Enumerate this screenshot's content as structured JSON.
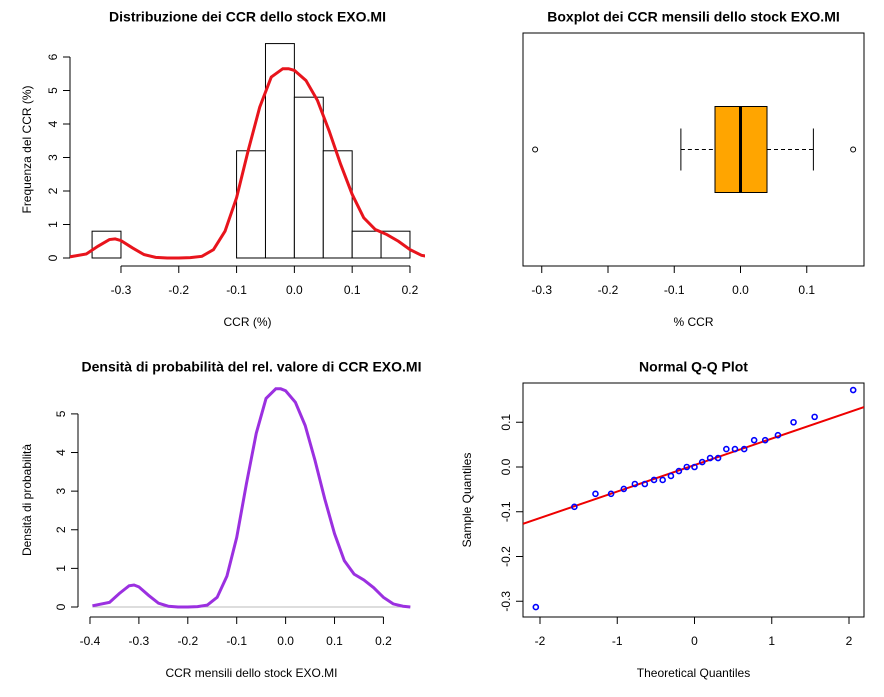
{
  "chart_data": [
    {
      "type": "histogram",
      "title": "Distribuzione dei CCR dello stock EXO.MI",
      "x_label": "CCR (%)",
      "y_label": "Frequenza del CCR (%)",
      "bins": [
        -0.35,
        -0.3,
        -0.25,
        -0.2,
        -0.15,
        -0.1,
        -0.05,
        0,
        0.05,
        0.1,
        0.15,
        0.2
      ],
      "values": [
        0.8,
        0,
        0,
        0,
        0,
        3.2,
        6.4,
        4.8,
        3.2,
        0.8,
        0.8
      ],
      "bar_color": "#ffffff",
      "edge_color": "#000000",
      "density": {
        "color": "#e8141c",
        "x": [
          -0.39,
          -0.36,
          -0.34,
          -0.32,
          -0.31,
          -0.3,
          -0.28,
          -0.26,
          -0.24,
          -0.22,
          -0.2,
          -0.18,
          -0.16,
          -0.14,
          -0.12,
          -0.1,
          -0.08,
          -0.06,
          -0.04,
          -0.02,
          -0.01,
          0,
          0.02,
          0.04,
          0.06,
          0.08,
          0.1,
          0.12,
          0.14,
          0.16,
          0.18,
          0.2,
          0.22,
          0.24,
          0.25
        ],
        "y": [
          0.03,
          0.12,
          0.35,
          0.55,
          0.57,
          0.52,
          0.3,
          0.1,
          0.02,
          0,
          0,
          0.01,
          0.05,
          0.25,
          0.8,
          1.8,
          3.2,
          4.5,
          5.4,
          5.65,
          5.65,
          5.6,
          5.3,
          4.7,
          3.8,
          2.8,
          1.9,
          1.2,
          0.85,
          0.7,
          0.5,
          0.25,
          0.08,
          0.02,
          0
        ]
      },
      "xlim": [
        -0.3882,
        0.226
      ],
      "ylim": [
        -0.239,
        6.716
      ],
      "xticks": [
        -0.3,
        -0.2,
        -0.1,
        {
          "value": 0,
          "label": "0.0"
        },
        0.1,
        0.2
      ],
      "yticks": [
        0,
        1,
        2,
        3,
        4,
        5,
        6
      ]
    },
    {
      "type": "boxplot",
      "title": "Boxplot dei CCR mensili dello stock EXO.MI",
      "x_label": "% CCR",
      "whisker_low": -0.09,
      "q1": -0.0385,
      "median": 0,
      "q3": 0.04,
      "whisker_high": 0.11,
      "outliers": [
        -0.31,
        0.17
      ],
      "color": "#ffa500",
      "xlim": [
        -0.3283,
        0.1864
      ],
      "xticks": [
        -0.3,
        -0.2,
        -0.1,
        {
          "value": 0,
          "label": "0.0"
        },
        0.1
      ]
    },
    {
      "type": "density",
      "title": "Densità di probabilità del rel. valore di CCR EXO.MI",
      "x_label": "CCR mensili dello stock EXO.MI",
      "y_label": "Densità di probabilità",
      "color": "#9b30e0",
      "x": [
        -0.395,
        -0.36,
        -0.34,
        -0.32,
        -0.31,
        -0.3,
        -0.28,
        -0.26,
        -0.24,
        -0.22,
        -0.2,
        -0.18,
        -0.16,
        -0.14,
        -0.12,
        -0.1,
        -0.08,
        -0.06,
        -0.04,
        -0.02,
        -0.01,
        0,
        0.02,
        0.04,
        0.06,
        0.08,
        0.1,
        0.12,
        0.14,
        0.16,
        0.18,
        0.2,
        0.22,
        0.24,
        0.255
      ],
      "y": [
        0.03,
        0.12,
        0.35,
        0.55,
        0.57,
        0.52,
        0.3,
        0.1,
        0.02,
        0,
        0,
        0.01,
        0.05,
        0.25,
        0.8,
        1.8,
        3.2,
        4.5,
        5.4,
        5.65,
        5.65,
        5.6,
        5.3,
        4.7,
        3.8,
        2.8,
        1.9,
        1.2,
        0.85,
        0.7,
        0.5,
        0.25,
        0.08,
        0.02,
        0
      ],
      "xlim": [
        -0.4245,
        0.285
      ],
      "ylim": [
        -0.259,
        5.8
      ],
      "xticks": [
        -0.4,
        -0.3,
        -0.2,
        -0.1,
        {
          "value": 0,
          "label": "0.0"
        },
        0.1,
        0.2
      ],
      "yticks": [
        0,
        1,
        2,
        3,
        4,
        5
      ]
    },
    {
      "type": "qq",
      "title": "Normal Q-Q Plot",
      "x_label": "Theoretical Quantiles",
      "y_label": "Sample Quantiles",
      "point_color": "#0000ff",
      "x": [
        -2.054,
        -1.555,
        -1.282,
        -1.08,
        -0.915,
        -0.772,
        -0.643,
        -0.524,
        -0.412,
        -0.305,
        -0.202,
        -0.1,
        0,
        0.1,
        0.202,
        0.305,
        0.412,
        0.524,
        0.643,
        0.772,
        0.915,
        1.08,
        1.282,
        1.555,
        2.054
      ],
      "values": [
        -0.313,
        -0.089,
        -0.06,
        -0.06,
        -0.049,
        -0.038,
        -0.038,
        -0.029,
        -0.029,
        -0.02,
        -0.009,
        0,
        0,
        0.011,
        0.02,
        0.02,
        0.04,
        0.04,
        0.04,
        0.06,
        0.06,
        0.071,
        0.1,
        0.112,
        0.172
      ],
      "line": {
        "color": "#ee0000",
        "x": [
          -2.22,
          2.194
        ],
        "y": [
          -0.127,
          0.134
        ]
      },
      "xlim": [
        -2.22,
        2.194
      ],
      "ylim": [
        -0.3352,
        0.1877
      ],
      "xticks": [
        -2,
        -1,
        0,
        1,
        2
      ],
      "yticks": [
        -0.3,
        -0.2,
        -0.1,
        {
          "value": 0,
          "label": "0.0"
        },
        0.1
      ]
    }
  ]
}
